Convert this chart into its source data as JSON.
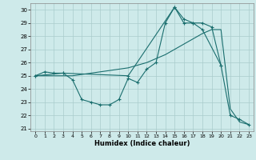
{
  "title": "",
  "xlabel": "Humidex (Indice chaleur)",
  "x_ticks": [
    0,
    1,
    2,
    3,
    4,
    5,
    6,
    7,
    8,
    9,
    10,
    11,
    12,
    13,
    14,
    15,
    16,
    17,
    18,
    19,
    20,
    21,
    22,
    23
  ],
  "xlim": [
    -0.5,
    23.5
  ],
  "ylim": [
    20.8,
    30.5
  ],
  "y_ticks": [
    21,
    22,
    23,
    24,
    25,
    26,
    27,
    28,
    29,
    30
  ],
  "bg_color": "#ceeaea",
  "grid_color": "#aacccc",
  "line_color": "#1a6e6e",
  "curve1_x": [
    0,
    1,
    2,
    3,
    4,
    5,
    6,
    7,
    8,
    9,
    10,
    11,
    12,
    13,
    14,
    15,
    16,
    17,
    18,
    19,
    20,
    21,
    22,
    23
  ],
  "curve1_y": [
    25.0,
    25.3,
    25.2,
    25.2,
    24.7,
    23.2,
    23.0,
    22.8,
    22.8,
    23.2,
    24.8,
    24.5,
    25.5,
    26.0,
    29.0,
    30.2,
    29.0,
    29.0,
    29.0,
    28.7,
    25.8,
    22.0,
    21.7,
    21.3
  ],
  "curve2_x": [
    0,
    1,
    2,
    3,
    4,
    5,
    6,
    7,
    8,
    9,
    10,
    11,
    12,
    13,
    14,
    15,
    16,
    17,
    18,
    19,
    20,
    21,
    22,
    23
  ],
  "curve2_y": [
    25.0,
    25.0,
    25.0,
    25.0,
    25.0,
    25.1,
    25.2,
    25.3,
    25.4,
    25.5,
    25.6,
    25.8,
    26.0,
    26.3,
    26.6,
    27.0,
    27.4,
    27.8,
    28.2,
    28.5,
    28.5,
    22.5,
    21.5,
    21.3
  ],
  "curve3_x": [
    0,
    3,
    10,
    15,
    16,
    17,
    18,
    20
  ],
  "curve3_y": [
    25.0,
    25.2,
    25.0,
    30.2,
    29.3,
    29.0,
    28.5,
    25.8
  ]
}
